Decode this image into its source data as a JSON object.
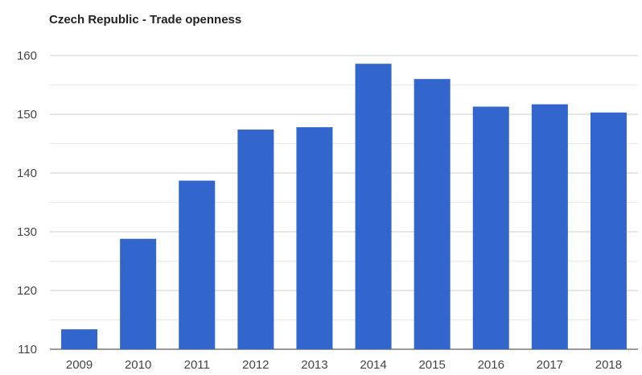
{
  "chart_data": {
    "type": "bar",
    "title": "Czech Republic - Trade openness",
    "categories": [
      "2009",
      "2010",
      "2011",
      "2012",
      "2013",
      "2014",
      "2015",
      "2016",
      "2017",
      "2018"
    ],
    "values": [
      113.4,
      128.8,
      138.7,
      147.4,
      147.8,
      158.6,
      156.0,
      151.3,
      151.7,
      150.3
    ],
    "y_ticks": [
      "160",
      "150",
      "140",
      "130",
      "120",
      "110"
    ],
    "ylim": [
      110,
      160
    ],
    "xlabel": "",
    "ylabel": "",
    "grid": true,
    "minor_grid": true,
    "legend": "none",
    "bar_color": "#3366cc",
    "grid_color": "#cccccc",
    "minor_grid_color": "#ebebeb"
  }
}
